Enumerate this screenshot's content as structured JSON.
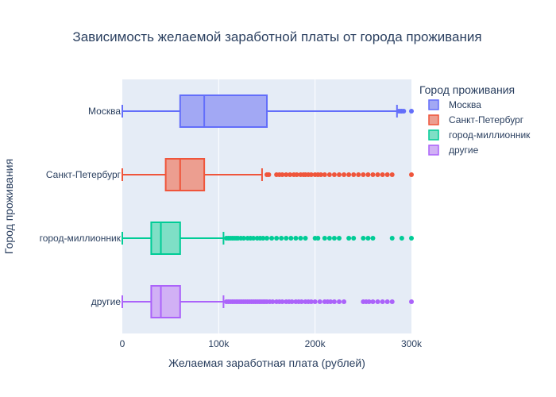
{
  "chart_data": {
    "type": "box",
    "orientation": "horizontal",
    "title": "Зависимость желаемой заработной платы от города проживания",
    "xlabel": "Желаемая заработная плата (рублей)",
    "ylabel": "Город проживания",
    "xlim": [
      0,
      300000
    ],
    "x_ticks": [
      0,
      100000,
      200000,
      300000
    ],
    "x_tick_labels": [
      "0",
      "100k",
      "200k",
      "300k"
    ],
    "grid": true,
    "legend": {
      "title": "Город проживания",
      "position": "top-right"
    },
    "series": [
      {
        "name": "Москва",
        "color": "#636efa",
        "fill": "#a2a8f4",
        "min": 0,
        "q1": 60000,
        "median": 85000,
        "q3": 150000,
        "max": 285000,
        "outliers": [
          287000,
          289000,
          290000,
          292000,
          300000
        ]
      },
      {
        "name": "Санкт-Петербург",
        "color": "#ef553b",
        "fill": "#ec9e90",
        "min": 0,
        "q1": 45000,
        "median": 60000,
        "q3": 85000,
        "max": 145000,
        "outliers": [
          150000,
          152000,
          160000,
          163000,
          166000,
          170000,
          174000,
          178000,
          181000,
          185000,
          188000,
          190000,
          193000,
          196000,
          200000,
          203000,
          206000,
          210000,
          215000,
          220000,
          225000,
          230000,
          235000,
          240000,
          245000,
          250000,
          255000,
          260000,
          265000,
          270000,
          275000,
          280000,
          300000
        ]
      },
      {
        "name": "город-миллионник",
        "color": "#00cc96",
        "fill": "#7fdfc6",
        "min": 0,
        "q1": 30000,
        "median": 40000,
        "q3": 60000,
        "max": 105000,
        "outliers": [
          108000,
          110000,
          112000,
          114000,
          116000,
          118000,
          120000,
          123000,
          126000,
          130000,
          133000,
          136000,
          140000,
          143000,
          146000,
          150000,
          155000,
          160000,
          165000,
          170000,
          175000,
          180000,
          185000,
          190000,
          200000,
          203000,
          210000,
          215000,
          220000,
          225000,
          235000,
          240000,
          250000,
          255000,
          260000,
          280000,
          290000,
          300000
        ]
      },
      {
        "name": "другие",
        "color": "#ab63fa",
        "fill": "#d1b1f5",
        "min": 0,
        "q1": 30000,
        "median": 40000,
        "q3": 60000,
        "max": 105000,
        "outliers": [
          108000,
          110000,
          112000,
          114000,
          116000,
          118000,
          120000,
          122000,
          124000,
          126000,
          128000,
          130000,
          132000,
          134000,
          136000,
          138000,
          140000,
          142000,
          144000,
          146000,
          148000,
          150000,
          153000,
          156000,
          160000,
          163000,
          166000,
          170000,
          173000,
          176000,
          180000,
          183000,
          186000,
          190000,
          193000,
          196000,
          200000,
          205000,
          210000,
          213000,
          216000,
          220000,
          225000,
          230000,
          250000,
          253000,
          256000,
          260000,
          265000,
          270000,
          275000,
          280000,
          300000
        ]
      }
    ]
  }
}
